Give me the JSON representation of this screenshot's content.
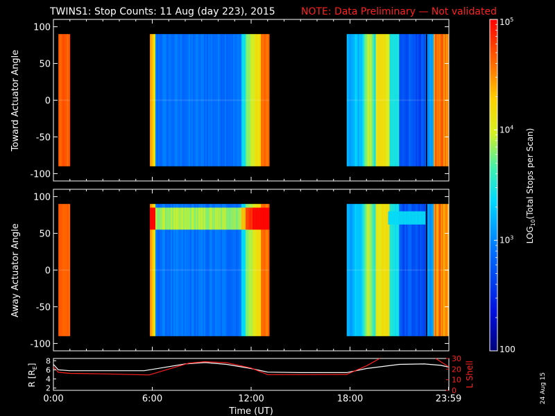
{
  "title": {
    "main": "TWINS1: Stop Counts: 11 Aug (day 223), 2015",
    "note": "NOTE: Data Preliminary — Not validated",
    "main_color": "#ffffff",
    "note_color": "#ff2020"
  },
  "stamp": "24 Aug 15",
  "colors": {
    "background": "#000000",
    "frame": "#ffffff",
    "r_line": "#ffffff",
    "lshell_line": "#ff2020"
  },
  "chart_data": [
    {
      "type": "heatmap",
      "name": "toward",
      "ylabel": "Toward Actuator Angle",
      "ylim": [
        -110,
        110
      ],
      "yticks": [
        100,
        50,
        0,
        -50,
        -100
      ],
      "xlim": [
        0,
        24
      ],
      "data_ylim": [
        -90,
        90
      ],
      "segments": [
        [
          0.3,
          1.0
        ],
        [
          5.85,
          13.1
        ],
        [
          17.8,
          24.0
        ]
      ],
      "color_scale": "log",
      "grid": false
    },
    {
      "type": "heatmap",
      "name": "away",
      "ylabel": "Away Actuator Angle",
      "ylim": [
        -110,
        110
      ],
      "yticks": [
        100,
        50,
        0,
        -50,
        -100
      ],
      "xlim": [
        0,
        24
      ],
      "data_ylim": [
        -90,
        90
      ],
      "segments": [
        [
          0.3,
          1.0
        ],
        [
          5.85,
          13.1
        ],
        [
          17.8,
          24.0
        ]
      ],
      "color_scale": "log",
      "grid": false
    },
    {
      "type": "line",
      "name": "orbit",
      "xlabel": "Time (UT)",
      "xticks": [
        "0:00",
        "6:00",
        "12:00",
        "18:00",
        "23:59"
      ],
      "xtick_values": [
        0,
        6,
        12,
        18,
        23.98
      ],
      "ylabel_left": "R [R",
      "ylabel_left_sub": "E",
      "ylabel_left_close": "]",
      "ylim_left": [
        1.5,
        8.5
      ],
      "yticks_left": [
        8,
        6,
        4,
        2
      ],
      "ylabel_right": "L Shell",
      "ylim_right": [
        0,
        30
      ],
      "yticks_right": [
        30,
        20,
        10,
        0
      ],
      "series": [
        {
          "name": "R",
          "axis": "left",
          "x": [
            0,
            0.3,
            1,
            3,
            5.5,
            6.5,
            8,
            9.2,
            10.5,
            12,
            13,
            15,
            17.8,
            19,
            21,
            22.5,
            23.5,
            24
          ],
          "values": [
            7.2,
            6.0,
            5.8,
            5.8,
            5.8,
            6.4,
            7.3,
            7.6,
            7.2,
            6.3,
            5.5,
            5.4,
            5.4,
            6.3,
            7.2,
            7.3,
            7.0,
            6.6
          ]
        },
        {
          "name": "L Shell",
          "axis": "right",
          "x": [
            0,
            0.3,
            1,
            3,
            5.8,
            7,
            8.2,
            9.2,
            10.5,
            12,
            13,
            15,
            17.8,
            19,
            19.8
          ],
          "values": [
            22,
            17,
            16,
            15.5,
            14.5,
            20,
            25.5,
            27,
            26,
            21,
            14.8,
            14.8,
            15,
            23,
            30
          ],
          "extra_points": {
            "x": [
              23.2,
              23.6,
              24
            ],
            "values": [
              30,
              26,
              22
            ]
          }
        }
      ]
    },
    {
      "type": "colorbar",
      "label": "LOG",
      "label_sub": "10",
      "label_rest": "(Total Stops per Scan)",
      "scale": "log",
      "range": [
        100,
        100000
      ],
      "ticks": [
        {
          "value": 100000,
          "base": "10",
          "exp": "5"
        },
        {
          "value": 10000,
          "base": "10",
          "exp": "4"
        },
        {
          "value": 1000,
          "base": "10",
          "exp": "3"
        },
        {
          "value": 100,
          "base": "100",
          "exp": ""
        }
      ]
    }
  ]
}
